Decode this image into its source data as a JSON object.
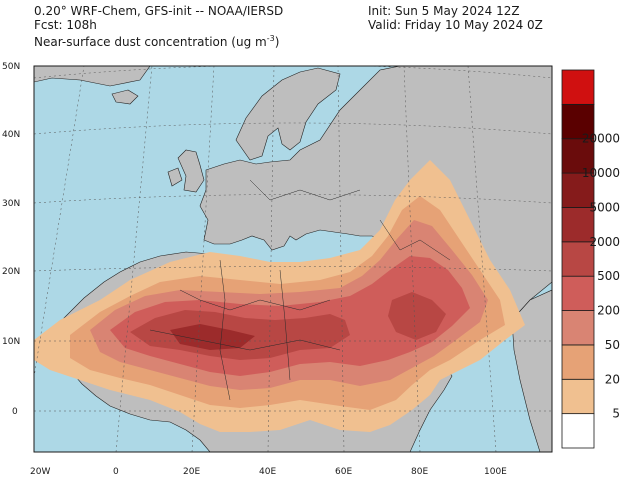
{
  "header": {
    "line1": "0.20° WRF-Chem, GFS-init -- NOAA/IERSD",
    "line2": "Fcst: 108h",
    "line3_prefix": "Near-surface dust concentration (ug m",
    "line3_sup": "-3",
    "line3_suffix": ")",
    "init": "Init: Sun 5 May 2024  12Z",
    "valid": "Valid: Friday 10 May 2024  0Z"
  },
  "axes": {
    "lat_labels": [
      "50N",
      "40N",
      "30N",
      "20N",
      "10N",
      "0"
    ],
    "lon_labels": [
      "20W",
      "0",
      "20E",
      "40E",
      "60E",
      "80E",
      "100E"
    ]
  },
  "colorbar": {
    "levels": [
      "5",
      "20",
      "50",
      "200",
      "500",
      "2000",
      "5000",
      "10000",
      "20000"
    ],
    "colors": [
      "#ffffff",
      "#f0c090",
      "#e6a276",
      "#d98473",
      "#cf5d5a",
      "#b84744",
      "#9c2b2b",
      "#851b1b",
      "#6a0c0c",
      "#5a0000",
      "#d01010"
    ]
  },
  "colors": {
    "ocean": "#add8e6",
    "land": "#bebebe",
    "border": "#1a1a1a"
  }
}
